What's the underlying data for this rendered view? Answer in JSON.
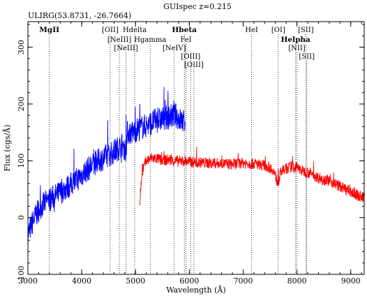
{
  "chart_data": {
    "type": "line",
    "title": "GUIspec z=0.215",
    "subtitle": "ULIRG(53.8731, -26.7664)",
    "xlabel": "Wavelength (Å)",
    "ylabel": "Flux (cgs/Å)",
    "xlim": [
      3000,
      9250
    ],
    "ylim": [
      -100,
      345
    ],
    "x_ticks": [
      3000,
      4000,
      5000,
      6000,
      7000,
      8000,
      9000
    ],
    "y_ticks": [
      -100,
      0,
      100,
      200,
      300
    ],
    "grid": false,
    "series": [
      {
        "color": "#0000ff",
        "noise": 22,
        "x": [
          3000,
          3080,
          3150,
          3250,
          3350,
          3450,
          3550,
          3650,
          3750,
          3850,
          3950,
          4050,
          4150,
          4250,
          4350,
          4450,
          4550,
          4650,
          4750,
          4820,
          4850,
          4950,
          5050,
          5150,
          5250,
          5350,
          5450,
          5550,
          5650,
          5750,
          5850,
          5920
        ],
        "y": [
          -30,
          -10,
          5,
          20,
          28,
          35,
          40,
          48,
          55,
          62,
          70,
          80,
          88,
          96,
          102,
          108,
          112,
          120,
          128,
          118,
          150,
          150,
          156,
          160,
          164,
          170,
          172,
          175,
          178,
          180,
          170,
          168
        ]
      },
      {
        "color": "#ff0000",
        "noise": 10,
        "x": [
          5080,
          5120,
          5200,
          5300,
          5400,
          5500,
          5600,
          5700,
          5800,
          5900,
          6000,
          6200,
          6400,
          6600,
          6800,
          7000,
          7200,
          7400,
          7550,
          7650,
          7700,
          7800,
          7900,
          8000,
          8100,
          8200,
          8400,
          8600,
          8800,
          9000,
          9100,
          9250
        ],
        "y": [
          30,
          80,
          100,
          105,
          104,
          100,
          102,
          100,
          99,
          100,
          98,
          97,
          96,
          95,
          94,
          96,
          95,
          92,
          85,
          60,
          80,
          86,
          90,
          88,
          82,
          80,
          70,
          65,
          55,
          45,
          40,
          35
        ]
      }
    ],
    "line_markers": [
      {
        "label": "MgII",
        "x": 3398,
        "bold": true
      },
      {
        "label": "[OII]",
        "x": 4529,
        "bold": false
      },
      {
        "label": "Hdelta",
        "x": 4985,
        "bold": false
      },
      {
        "label": "[NeIII]",
        "x": 4700,
        "bold": false
      },
      {
        "label": "[NeIII]",
        "x": 4823,
        "bold": false
      },
      {
        "label": "Hgamma",
        "x": 5273,
        "bold": false
      },
      {
        "label": "Hbeta",
        "x": 5907,
        "bold": true
      },
      {
        "label": "FeI",
        "x": 5937,
        "bold": false
      },
      {
        "label": "[NeIV]",
        "x": 5720,
        "bold": false
      },
      {
        "label": "[OIII]",
        "x": 6025,
        "bold": false
      },
      {
        "label": "[OIII]",
        "x": 6085,
        "bold": false
      },
      {
        "label": "HeI",
        "x": 7157,
        "bold": false
      },
      {
        "label": "[OI]",
        "x": 7653,
        "bold": false
      },
      {
        "label": "Helpha",
        "x": 7975,
        "bold": true
      },
      {
        "label": "[NII]",
        "x": 7998,
        "bold": false
      },
      {
        "label": "[SII]",
        "x": 8165,
        "bold": false
      },
      {
        "label": "[SII]",
        "x": 8183,
        "bold": false
      }
    ]
  }
}
